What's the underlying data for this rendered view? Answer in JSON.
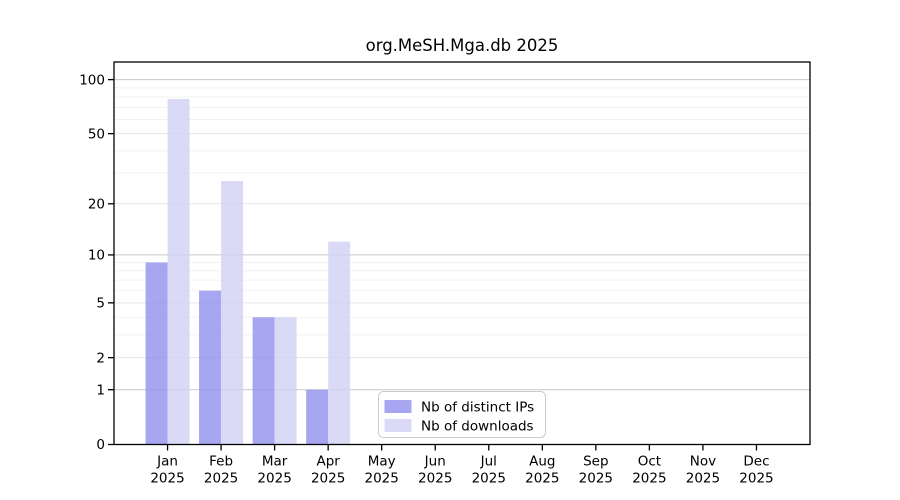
{
  "title": "org.MeSH.Mga.db 2025",
  "chart_data": {
    "type": "bar",
    "title": "org.MeSH.Mga.db 2025",
    "xlabel": "",
    "ylabel": "",
    "scale": "log10(1+x)",
    "categories": [
      "Jan",
      "Feb",
      "Mar",
      "Apr",
      "May",
      "Jun",
      "Jul",
      "Aug",
      "Sep",
      "Oct",
      "Nov",
      "Dec"
    ],
    "year_label": "2025",
    "series": [
      {
        "name": "Nb of distinct IPs",
        "color": "rgba(144,144,238,0.8)",
        "values": [
          9,
          6,
          4,
          1,
          0,
          0,
          0,
          0,
          0,
          0,
          0,
          0
        ]
      },
      {
        "name": "Nb of downloads",
        "color": "rgba(209,209,245,0.8)",
        "values": [
          78,
          27,
          4,
          12,
          0,
          0,
          0,
          0,
          0,
          0,
          0,
          0
        ]
      }
    ],
    "yticks": [
      0,
      1,
      2,
      5,
      10,
      20,
      50,
      100
    ],
    "ylim": [
      0,
      124
    ],
    "grid": true,
    "gridlines": {
      "decade": [
        1,
        10,
        100
      ],
      "major": [
        2,
        5,
        20,
        50
      ],
      "minor": [
        3,
        4,
        6,
        7,
        8,
        9,
        30,
        40,
        60,
        70,
        80,
        90
      ]
    },
    "legend_position": "lower center",
    "colors": {
      "decade_grid": "#c9c9c9",
      "major_grid": "#e6e6e6",
      "minor_grid": "#f2f2f2",
      "axis": "#000000",
      "legend_border": "#cccccc",
      "legend_bg": "#ffffff"
    }
  }
}
